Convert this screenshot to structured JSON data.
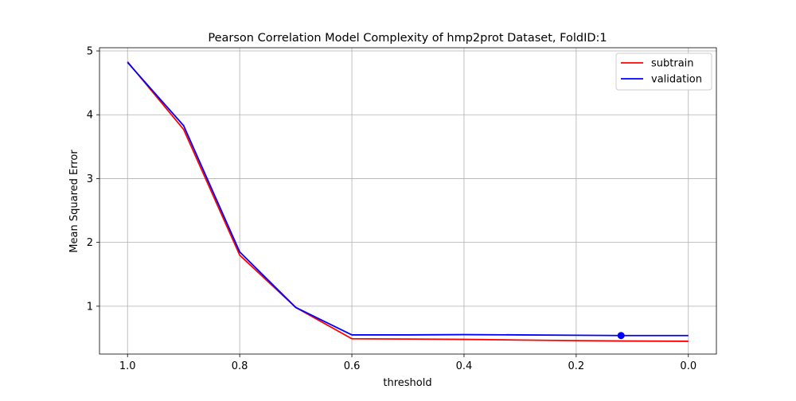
{
  "chart_data": {
    "type": "line",
    "title": "Pearson Correlation Model Complexity of hmp2prot Dataset, FoldID:1",
    "xlabel": "threshold",
    "ylabel": "Mean Squared Error",
    "x_inverted": true,
    "xlim": [
      1.05,
      -0.05
    ],
    "ylim": [
      0.25,
      5.05
    ],
    "xticks": [
      1.0,
      0.8,
      0.6,
      0.4,
      0.2,
      0.0
    ],
    "xtick_labels": [
      "1.0",
      "0.8",
      "0.6",
      "0.4",
      "0.2",
      "0.0"
    ],
    "yticks": [
      1,
      2,
      3,
      4,
      5
    ],
    "ytick_labels": [
      "1",
      "2",
      "3",
      "4",
      "5"
    ],
    "grid": true,
    "legend_position": "top-right",
    "series": [
      {
        "name": "subtrain",
        "color": "#ff0000",
        "x": [
          1.0,
          0.9,
          0.8,
          0.7,
          0.6,
          0.5,
          0.4,
          0.3,
          0.2,
          0.12,
          0.0
        ],
        "y": [
          4.83,
          3.77,
          1.8,
          0.98,
          0.49,
          0.485,
          0.48,
          0.47,
          0.46,
          0.455,
          0.45
        ]
      },
      {
        "name": "validation",
        "color": "#0000ff",
        "x": [
          1.0,
          0.9,
          0.8,
          0.7,
          0.6,
          0.5,
          0.4,
          0.3,
          0.2,
          0.12,
          0.0
        ],
        "y": [
          4.82,
          3.83,
          1.85,
          0.98,
          0.55,
          0.55,
          0.555,
          0.55,
          0.545,
          0.54,
          0.54
        ]
      }
    ],
    "marker": {
      "series": "validation",
      "x": 0.12,
      "y": 0.54,
      "color": "#0000ff"
    }
  }
}
